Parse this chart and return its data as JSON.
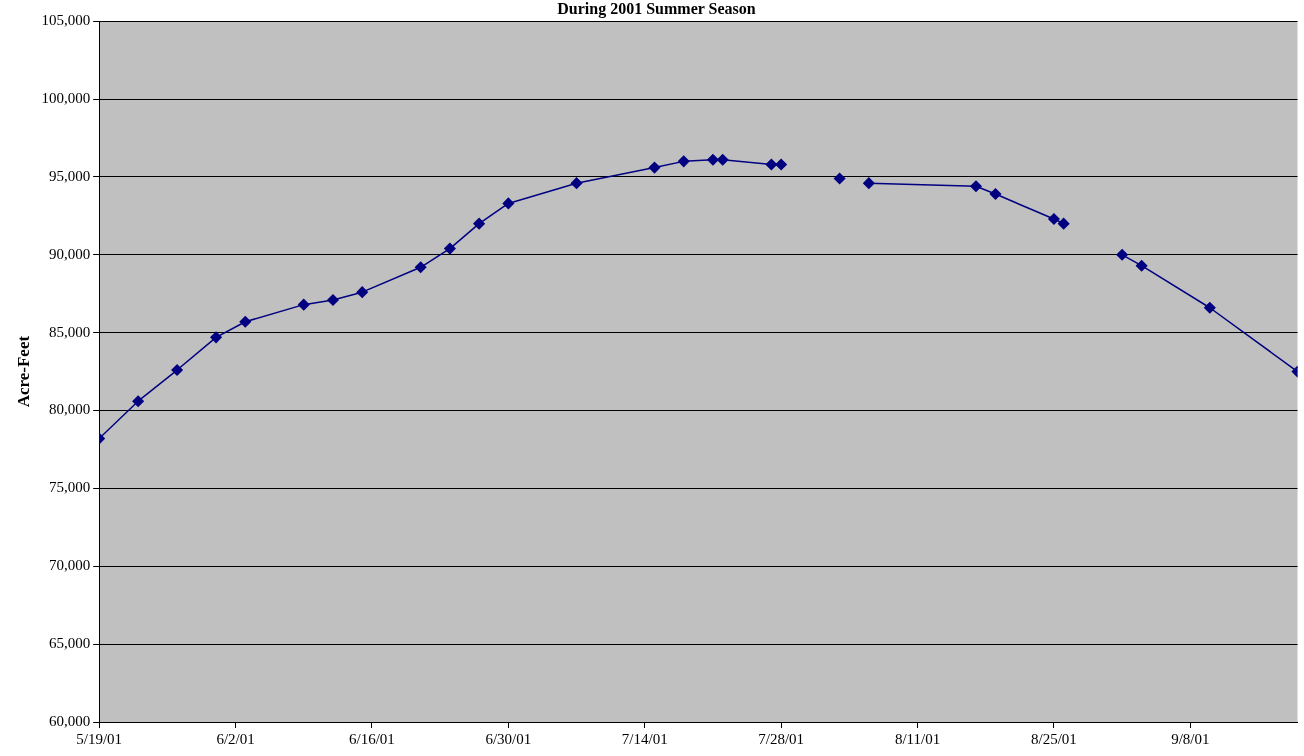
{
  "chart_data": {
    "type": "line",
    "title": "During 2001 Summer Season",
    "ylabel": "Acre-Feet",
    "x": [
      "2001-05-19",
      "2001-05-23",
      "2001-05-27",
      "2001-05-31",
      "2001-06-03",
      "2001-06-09",
      "2001-06-12",
      "2001-06-15",
      "2001-06-21",
      "2001-06-24",
      "2001-06-27",
      "2001-06-30",
      "2001-07-07",
      "2001-07-15",
      "2001-07-18",
      "2001-07-21",
      "2001-07-22",
      "2001-07-27",
      "2001-07-28",
      "2001-07-31",
      "2001-08-03",
      "2001-08-05",
      "2001-08-06",
      "2001-08-17",
      "2001-08-19",
      "2001-08-25",
      "2001-08-26",
      "2001-08-29",
      "2001-09-01",
      "2001-09-03",
      "2001-09-10",
      "2001-09-19"
    ],
    "series": [
      {
        "color": "#000080",
        "values": [
          78200,
          80600,
          82600,
          84700,
          85700,
          86800,
          87100,
          87600,
          89200,
          90400,
          92000,
          93300,
          94600,
          95600,
          96000,
          96100,
          96100,
          95800,
          95800,
          null,
          94900,
          null,
          94600,
          94400,
          93900,
          92300,
          92000,
          null,
          90000,
          89300,
          86600,
          82500
        ]
      }
    ],
    "xlim": [
      "2001-05-19",
      "2001-09-19"
    ],
    "xticks": [
      {
        "value": "2001-05-19",
        "label": "5/19/01"
      },
      {
        "value": "2001-06-02",
        "label": "6/2/01"
      },
      {
        "value": "2001-06-16",
        "label": "6/16/01"
      },
      {
        "value": "2001-06-30",
        "label": "6/30/01"
      },
      {
        "value": "2001-07-14",
        "label": "7/14/01"
      },
      {
        "value": "2001-07-28",
        "label": "7/28/01"
      },
      {
        "value": "2001-08-11",
        "label": "8/11/01"
      },
      {
        "value": "2001-08-25",
        "label": "8/25/01"
      },
      {
        "value": "2001-09-08",
        "label": "9/8/01"
      }
    ],
    "ylim": [
      60000,
      105000
    ],
    "yticks": [
      {
        "value": 60000,
        "label": "60,000"
      },
      {
        "value": 65000,
        "label": "65,000"
      },
      {
        "value": 70000,
        "label": "70,000"
      },
      {
        "value": 75000,
        "label": "75,000"
      },
      {
        "value": 80000,
        "label": "80,000"
      },
      {
        "value": 85000,
        "label": "85,000"
      },
      {
        "value": 90000,
        "label": "90,000"
      },
      {
        "value": 95000,
        "label": "95,000"
      },
      {
        "value": 100000,
        "label": "100,000"
      },
      {
        "value": 105000,
        "label": "105,000"
      }
    ],
    "grid": "y",
    "legend": false,
    "marker": "diamond",
    "line_style": "solid"
  }
}
